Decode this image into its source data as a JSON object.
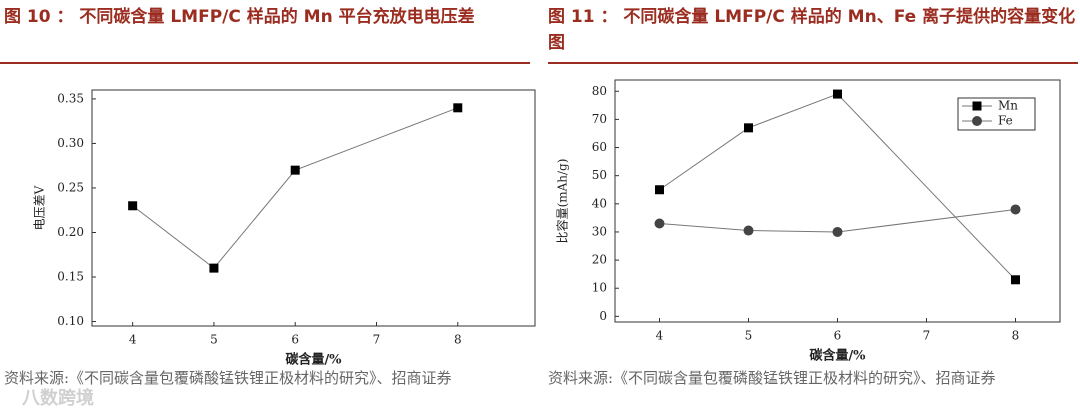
{
  "chart_data": [
    {
      "type": "line",
      "title": "图 10 ： 不同碳含量 LMFP/C 样品的 Mn 平台充放电电压差",
      "xlabel": "碳含量/%",
      "ylabel": "电压差V",
      "x": [
        4,
        5,
        6,
        8
      ],
      "series": [
        {
          "color": "#000000",
          "marker": "square",
          "values": [
            0.23,
            0.16,
            0.27,
            0.34
          ]
        }
      ],
      "xlim": [
        3.5,
        8.95
      ],
      "ylim": [
        0.095,
        0.36
      ],
      "xticks": [
        4,
        5,
        6,
        7,
        8
      ],
      "yticks": [
        {
          "value": 0.1,
          "label": "0.10"
        },
        {
          "value": 0.15,
          "label": "0.15"
        },
        {
          "value": 0.2,
          "label": "0.20"
        },
        {
          "value": 0.25,
          "label": "0.25"
        },
        {
          "value": 0.3,
          "label": "0.30"
        },
        {
          "value": 0.35,
          "label": "0.35"
        }
      ],
      "source": "资料来源:《不同碳含量包覆磷酸锰铁锂正极材料的研究》、招商证券"
    },
    {
      "type": "line",
      "title": "图 11 ： 不同碳含量 LMFP/C 样品的 Mn、Fe 离子提供的容量变化图",
      "xlabel": "碳含量/%",
      "ylabel": "比容量(mAh/g)",
      "x": [
        4,
        5,
        6,
        8
      ],
      "series": [
        {
          "name": "Mn",
          "color": "#000000",
          "marker": "square",
          "values": [
            45,
            67,
            79,
            13
          ]
        },
        {
          "name": "Fe",
          "color": "#444444",
          "marker": "circle",
          "values": [
            33,
            30.5,
            30,
            38
          ]
        }
      ],
      "xlim": [
        3.5,
        8.5
      ],
      "ylim": [
        -2,
        84
      ],
      "xticks": [
        4,
        5,
        6,
        7,
        8
      ],
      "yticks": [
        0,
        10,
        20,
        30,
        40,
        50,
        60,
        70,
        80
      ],
      "legend": "upper right",
      "source": "资料来源:《不同碳含量包覆磷酸锰铁锂正极材料的研究》、招商证券"
    }
  ],
  "watermark": "八数跨境"
}
